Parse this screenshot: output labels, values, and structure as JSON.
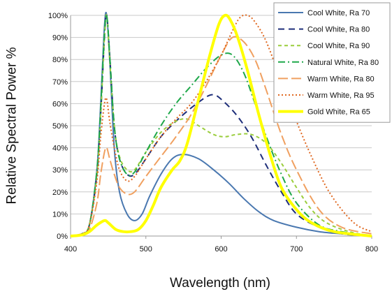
{
  "chart_data": {
    "type": "line",
    "xlabel": "Wavelength (nm)",
    "ylabel": "Relative Spectral Power %",
    "xlim": [
      400,
      800
    ],
    "ylim": [
      0,
      100
    ],
    "x_ticks": [
      "400",
      "500",
      "600",
      "700",
      "800"
    ],
    "y_ticks": [
      "0%",
      "10%",
      "20%",
      "30%",
      "40%",
      "50%",
      "60%",
      "70%",
      "80%",
      "90%",
      "100%"
    ],
    "grid": "horizontal",
    "legend_position": "top-right",
    "series": [
      {
        "name": "Cool White, Ra 70",
        "color": "#4a78b0",
        "dash": "solid",
        "points": [
          [
            400,
            0
          ],
          [
            415,
            1
          ],
          [
            425,
            5
          ],
          [
            435,
            30
          ],
          [
            440,
            60
          ],
          [
            445,
            95
          ],
          [
            448,
            100
          ],
          [
            452,
            80
          ],
          [
            458,
            40
          ],
          [
            465,
            20
          ],
          [
            475,
            10
          ],
          [
            485,
            7
          ],
          [
            495,
            10
          ],
          [
            505,
            18
          ],
          [
            520,
            28
          ],
          [
            535,
            35
          ],
          [
            550,
            37
          ],
          [
            570,
            35
          ],
          [
            590,
            30
          ],
          [
            610,
            24
          ],
          [
            630,
            17
          ],
          [
            650,
            11
          ],
          [
            670,
            7
          ],
          [
            700,
            4
          ],
          [
            730,
            2
          ],
          [
            760,
            1
          ],
          [
            800,
            0
          ]
        ]
      },
      {
        "name": "Cool White, Ra 80",
        "color": "#1f2f7a",
        "dash": "9,6",
        "points": [
          [
            400,
            0
          ],
          [
            415,
            1
          ],
          [
            425,
            5
          ],
          [
            435,
            28
          ],
          [
            440,
            55
          ],
          [
            445,
            90
          ],
          [
            448,
            100
          ],
          [
            452,
            82
          ],
          [
            458,
            50
          ],
          [
            465,
            35
          ],
          [
            475,
            28
          ],
          [
            485,
            28
          ],
          [
            500,
            35
          ],
          [
            520,
            45
          ],
          [
            540,
            52
          ],
          [
            560,
            58
          ],
          [
            580,
            63
          ],
          [
            590,
            64
          ],
          [
            600,
            62
          ],
          [
            620,
            55
          ],
          [
            640,
            45
          ],
          [
            660,
            32
          ],
          [
            680,
            20
          ],
          [
            700,
            10
          ],
          [
            730,
            4
          ],
          [
            760,
            1
          ],
          [
            800,
            0
          ]
        ]
      },
      {
        "name": "Cool White, Ra 90",
        "color": "#9acd3c",
        "dash": "5,4",
        "points": [
          [
            400,
            0
          ],
          [
            415,
            1
          ],
          [
            425,
            5
          ],
          [
            435,
            28
          ],
          [
            440,
            55
          ],
          [
            445,
            90
          ],
          [
            448,
            100
          ],
          [
            452,
            80
          ],
          [
            458,
            50
          ],
          [
            465,
            36
          ],
          [
            475,
            30
          ],
          [
            485,
            30
          ],
          [
            500,
            38
          ],
          [
            520,
            47
          ],
          [
            540,
            52
          ],
          [
            555,
            53
          ],
          [
            570,
            50
          ],
          [
            590,
            46
          ],
          [
            605,
            45
          ],
          [
            620,
            46
          ],
          [
            640,
            46
          ],
          [
            660,
            42
          ],
          [
            680,
            33
          ],
          [
            700,
            22
          ],
          [
            720,
            12
          ],
          [
            740,
            6
          ],
          [
            770,
            2
          ],
          [
            800,
            0
          ]
        ]
      },
      {
        "name": "Natural White, Ra 80",
        "color": "#1fa84a",
        "dash": "10,4,2,4",
        "points": [
          [
            400,
            0
          ],
          [
            415,
            1
          ],
          [
            425,
            5
          ],
          [
            435,
            30
          ],
          [
            440,
            58
          ],
          [
            445,
            92
          ],
          [
            448,
            100
          ],
          [
            452,
            82
          ],
          [
            458,
            50
          ],
          [
            465,
            35
          ],
          [
            475,
            28
          ],
          [
            485,
            29
          ],
          [
            500,
            38
          ],
          [
            520,
            50
          ],
          [
            540,
            60
          ],
          [
            560,
            68
          ],
          [
            580,
            76
          ],
          [
            600,
            82
          ],
          [
            615,
            82
          ],
          [
            630,
            74
          ],
          [
            645,
            60
          ],
          [
            660,
            45
          ],
          [
            680,
            28
          ],
          [
            700,
            15
          ],
          [
            730,
            5
          ],
          [
            760,
            2
          ],
          [
            800,
            0
          ]
        ]
      },
      {
        "name": "Warm White, Ra 80",
        "color": "#f0a060",
        "dash": "14,5",
        "points": [
          [
            400,
            0
          ],
          [
            415,
            1
          ],
          [
            425,
            3
          ],
          [
            435,
            15
          ],
          [
            440,
            28
          ],
          [
            445,
            38
          ],
          [
            448,
            40
          ],
          [
            452,
            35
          ],
          [
            458,
            28
          ],
          [
            465,
            22
          ],
          [
            475,
            19
          ],
          [
            485,
            20
          ],
          [
            500,
            27
          ],
          [
            520,
            36
          ],
          [
            540,
            45
          ],
          [
            560,
            55
          ],
          [
            580,
            68
          ],
          [
            600,
            82
          ],
          [
            615,
            90
          ],
          [
            630,
            88
          ],
          [
            645,
            80
          ],
          [
            660,
            66
          ],
          [
            680,
            46
          ],
          [
            700,
            30
          ],
          [
            730,
            12
          ],
          [
            760,
            4
          ],
          [
            800,
            1
          ]
        ]
      },
      {
        "name": "Warm White, Ra 95",
        "color": "#e06820",
        "dash": "2,3",
        "points": [
          [
            400,
            0
          ],
          [
            415,
            1
          ],
          [
            425,
            5
          ],
          [
            435,
            25
          ],
          [
            440,
            45
          ],
          [
            445,
            60
          ],
          [
            448,
            62
          ],
          [
            452,
            52
          ],
          [
            458,
            40
          ],
          [
            465,
            30
          ],
          [
            475,
            25
          ],
          [
            485,
            27
          ],
          [
            500,
            35
          ],
          [
            520,
            45
          ],
          [
            540,
            53
          ],
          [
            560,
            60
          ],
          [
            580,
            70
          ],
          [
            600,
            82
          ],
          [
            615,
            93
          ],
          [
            625,
            99
          ],
          [
            635,
            100
          ],
          [
            645,
            97
          ],
          [
            660,
            88
          ],
          [
            680,
            70
          ],
          [
            700,
            52
          ],
          [
            720,
            36
          ],
          [
            740,
            22
          ],
          [
            760,
            12
          ],
          [
            780,
            5
          ],
          [
            800,
            2
          ]
        ]
      },
      {
        "name": "Gold White, Ra 65",
        "color": "#ffff00",
        "dash": "solid",
        "width": 4,
        "points": [
          [
            400,
            0
          ],
          [
            415,
            0.5
          ],
          [
            425,
            2
          ],
          [
            435,
            5
          ],
          [
            445,
            7
          ],
          [
            450,
            6
          ],
          [
            460,
            3
          ],
          [
            470,
            2
          ],
          [
            480,
            2
          ],
          [
            490,
            3
          ],
          [
            500,
            7
          ],
          [
            510,
            14
          ],
          [
            520,
            22
          ],
          [
            535,
            30
          ],
          [
            545,
            34
          ],
          [
            555,
            42
          ],
          [
            570,
            62
          ],
          [
            585,
            82
          ],
          [
            597,
            96
          ],
          [
            605,
            100
          ],
          [
            612,
            98
          ],
          [
            622,
            90
          ],
          [
            635,
            75
          ],
          [
            650,
            55
          ],
          [
            665,
            37
          ],
          [
            680,
            22
          ],
          [
            700,
            12
          ],
          [
            720,
            6
          ],
          [
            750,
            2
          ],
          [
            800,
            0
          ]
        ]
      }
    ]
  }
}
